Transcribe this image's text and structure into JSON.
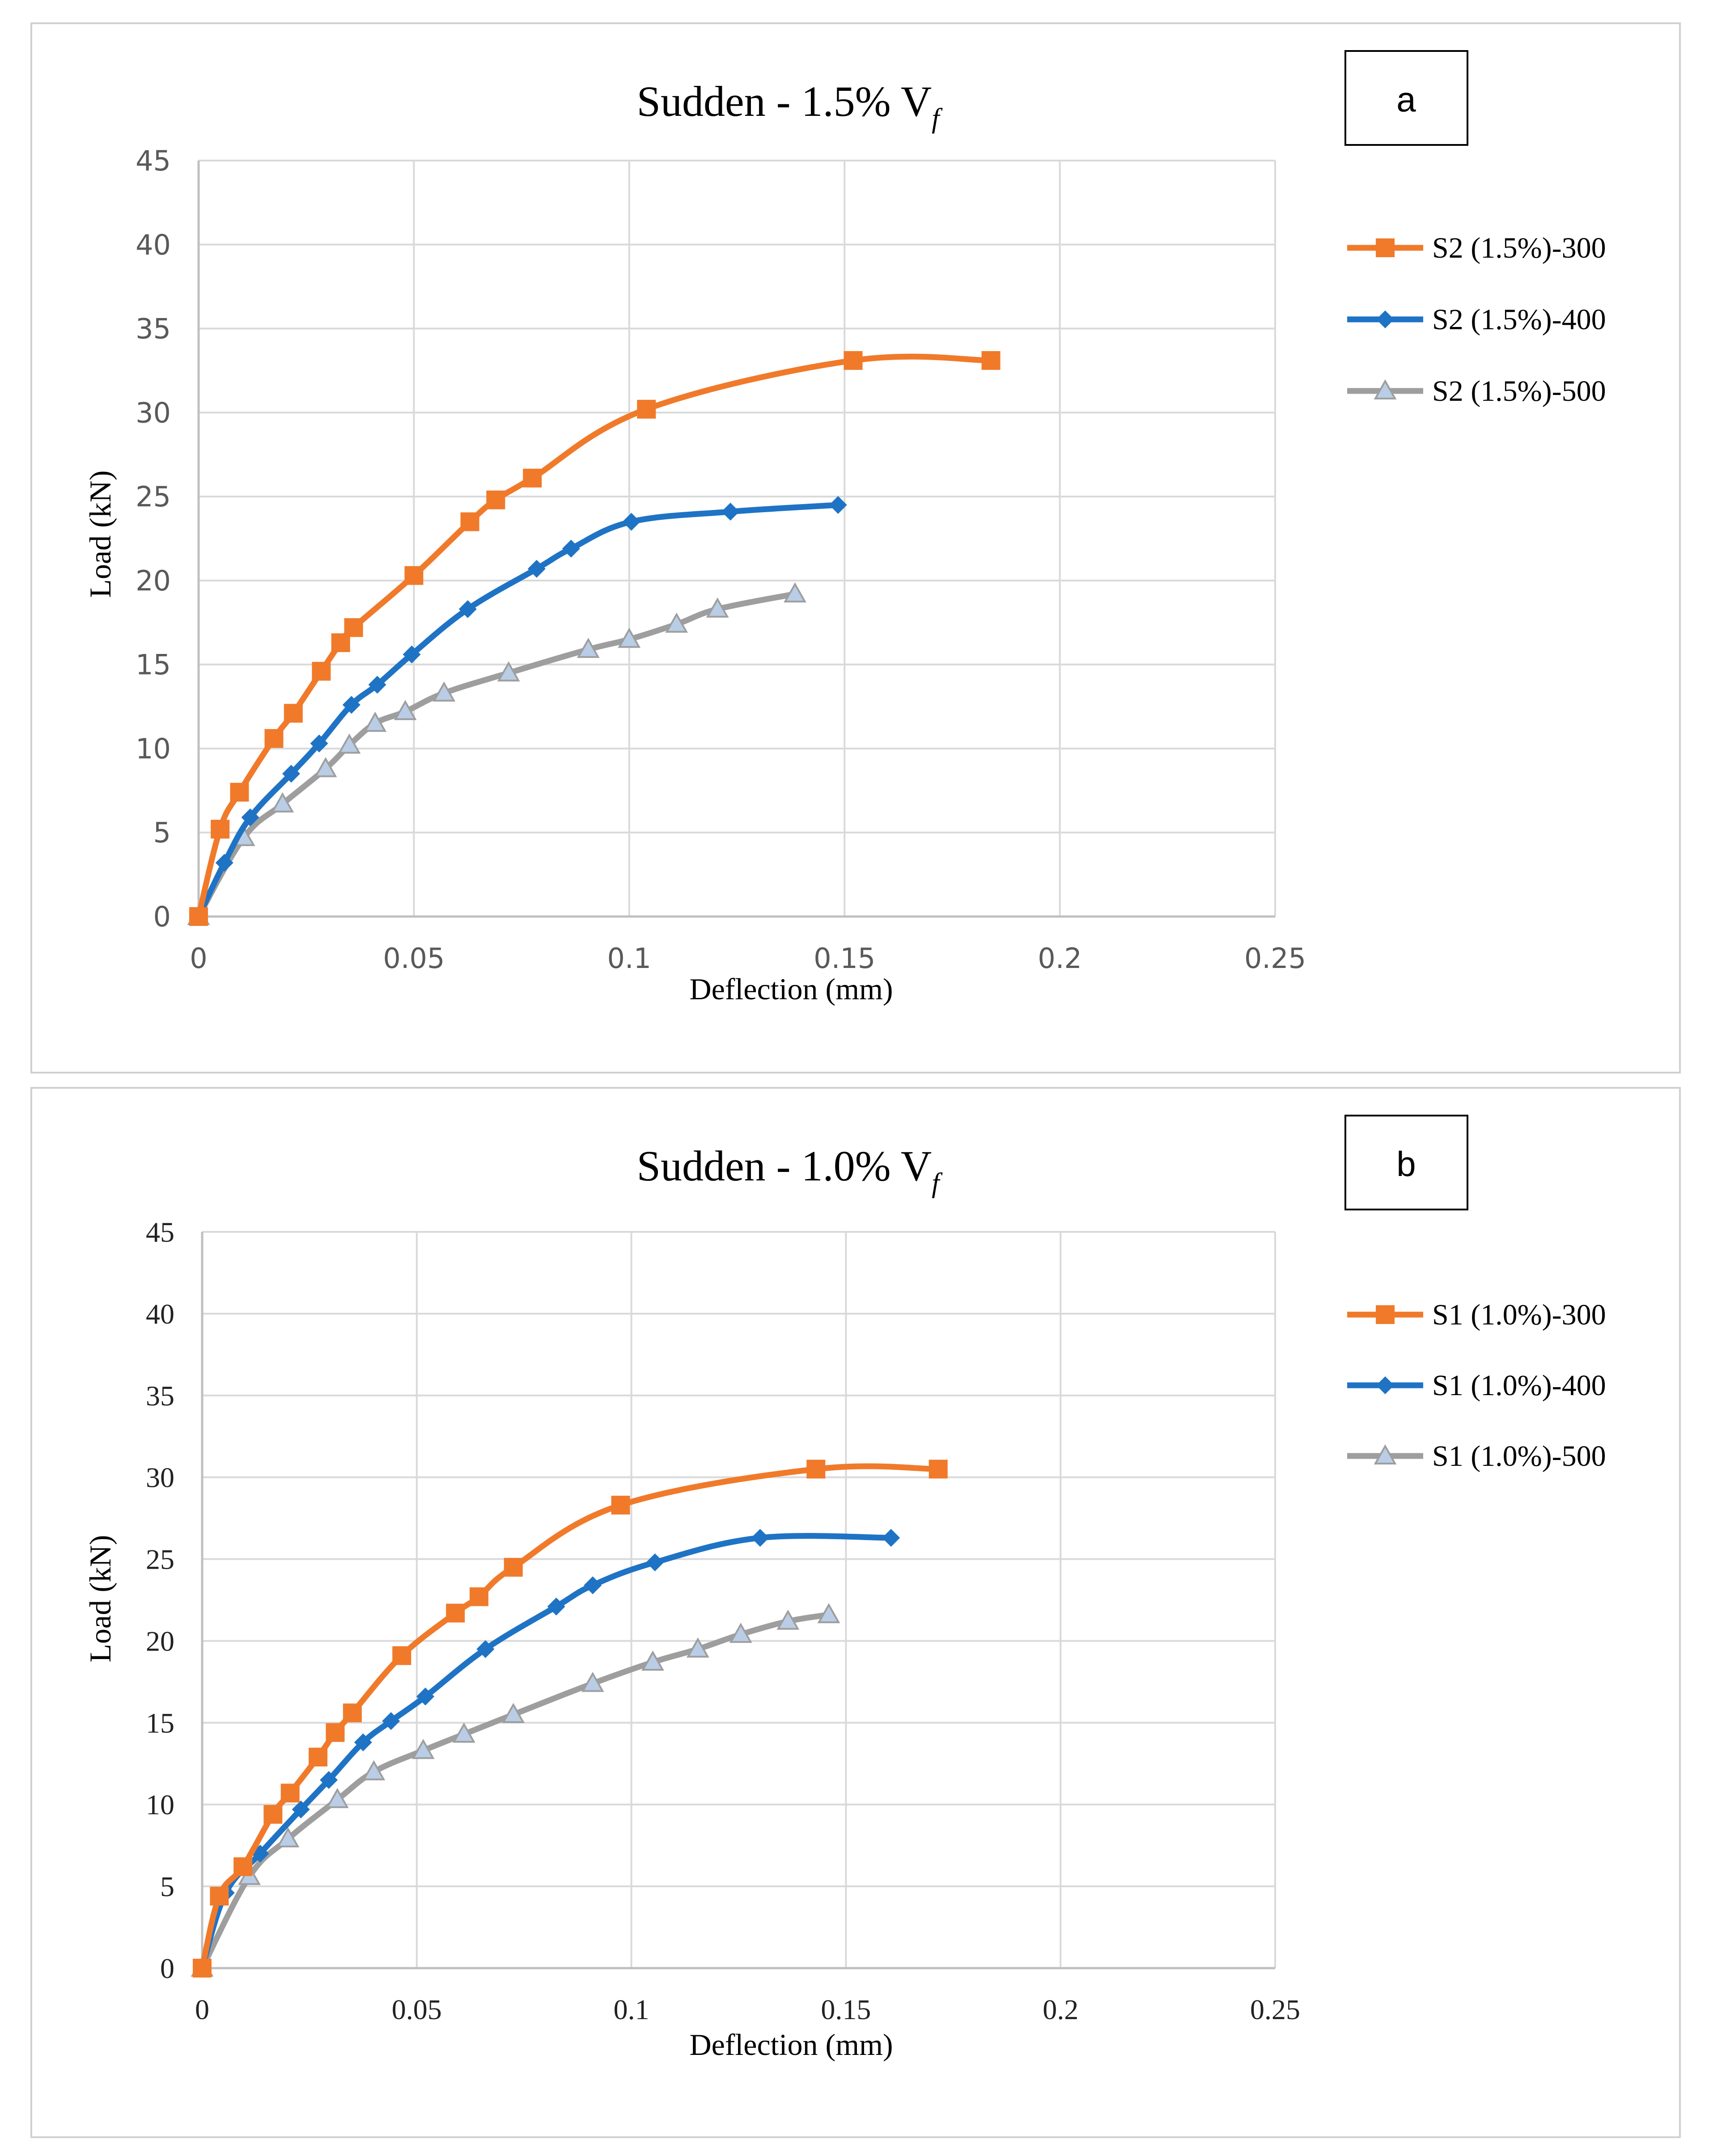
{
  "colors": {
    "orange": "#F07A2A",
    "blue": "#1F73C5",
    "gray": "#9E9E9E",
    "gray_marker": "#B9CDE6",
    "grid": "#d9d9d9"
  },
  "chart_data": [
    {
      "type": "line",
      "panel_label": "a",
      "title": "Sudden - 1.5% V",
      "title_subscript": "f",
      "xlabel": "Deflection (mm)",
      "ylabel": "Load (kN)",
      "xlim": [
        0,
        0.25
      ],
      "ylim": [
        0,
        45
      ],
      "x_ticks": [
        "0",
        "0.05",
        "0.1",
        "0.15",
        "0.2",
        "0.25"
      ],
      "y_ticks": [
        "0",
        "5",
        "10",
        "15",
        "20",
        "25",
        "30",
        "35",
        "40",
        "45"
      ],
      "grid": true,
      "legend_position": "right",
      "series": [
        {
          "name": "S2 (1.5%)-300",
          "marker": "square",
          "x": [
            0,
            0.005,
            0.0095,
            0.0175,
            0.022,
            0.0285,
            0.033,
            0.036,
            0.05,
            0.063,
            0.069,
            0.0775,
            0.104,
            0.152,
            0.184
          ],
          "y": [
            0,
            5.2,
            7.4,
            10.6,
            12.1,
            14.6,
            16.3,
            17.2,
            20.3,
            23.5,
            24.8,
            26.1,
            30.2,
            33.1,
            33.1
          ]
        },
        {
          "name": "S2 (1.5%)-400",
          "marker": "diamond",
          "x": [
            0,
            0.006,
            0.012,
            0.0215,
            0.028,
            0.0355,
            0.0415,
            0.0495,
            0.0625,
            0.0785,
            0.0865,
            0.1005,
            0.1235,
            0.1485
          ],
          "y": [
            0,
            3.2,
            5.9,
            8.5,
            10.3,
            12.6,
            13.8,
            15.6,
            18.3,
            20.7,
            21.9,
            23.5,
            24.1,
            24.5
          ]
        },
        {
          "name": "S2 (1.5%)-500",
          "marker": "triangle",
          "x": [
            0,
            0.0105,
            0.0195,
            0.0295,
            0.035,
            0.041,
            0.048,
            0.057,
            0.072,
            0.0905,
            0.1,
            0.111,
            0.1205,
            0.1385
          ],
          "y": [
            0,
            4.7,
            6.7,
            8.8,
            10.2,
            11.5,
            12.2,
            13.3,
            14.5,
            15.9,
            16.5,
            17.4,
            18.3,
            19.2
          ]
        }
      ]
    },
    {
      "type": "line",
      "panel_label": "b",
      "title": "Sudden - 1.0% V",
      "title_subscript": "f",
      "xlabel": "Deflection (mm)",
      "ylabel": "Load (kN)",
      "xlim": [
        0,
        0.25
      ],
      "ylim": [
        0,
        45
      ],
      "x_ticks": [
        "0",
        "0.05",
        "0.1",
        "0.15",
        "0.2",
        "0.25"
      ],
      "y_ticks": [
        "0",
        "5",
        "10",
        "15",
        "20",
        "25",
        "30",
        "35",
        "40",
        "45"
      ],
      "grid": true,
      "legend_position": "right",
      "series": [
        {
          "name": "S1 (1.0%)-300",
          "marker": "square",
          "x": [
            0,
            0.004,
            0.0095,
            0.0165,
            0.0205,
            0.027,
            0.031,
            0.035,
            0.0465,
            0.059,
            0.0645,
            0.0725,
            0.0975,
            0.143,
            0.1715
          ],
          "y": [
            0,
            4.4,
            6.2,
            9.4,
            10.7,
            12.9,
            14.4,
            15.6,
            19.1,
            21.7,
            22.7,
            24.5,
            28.3,
            30.5,
            30.5
          ]
        },
        {
          "name": "S1 (1.0%)-400",
          "marker": "diamond",
          "x": [
            0,
            0.0055,
            0.0135,
            0.023,
            0.0295,
            0.0375,
            0.044,
            0.052,
            0.066,
            0.0825,
            0.091,
            0.1055,
            0.13,
            0.1605
          ],
          "y": [
            0,
            4.6,
            7.0,
            9.7,
            11.5,
            13.8,
            15.1,
            16.6,
            19.5,
            22.1,
            23.4,
            24.8,
            26.3,
            26.3
          ]
        },
        {
          "name": "S1 (1.0%)-500",
          "marker": "triangle",
          "x": [
            0,
            0.011,
            0.02,
            0.0315,
            0.04,
            0.0515,
            0.061,
            0.0725,
            0.091,
            0.105,
            0.1155,
            0.1255,
            0.1365,
            0.146
          ],
          "y": [
            0,
            5.6,
            7.9,
            10.3,
            12.0,
            13.3,
            14.3,
            15.5,
            17.4,
            18.7,
            19.5,
            20.4,
            21.2,
            21.6
          ]
        }
      ]
    }
  ]
}
